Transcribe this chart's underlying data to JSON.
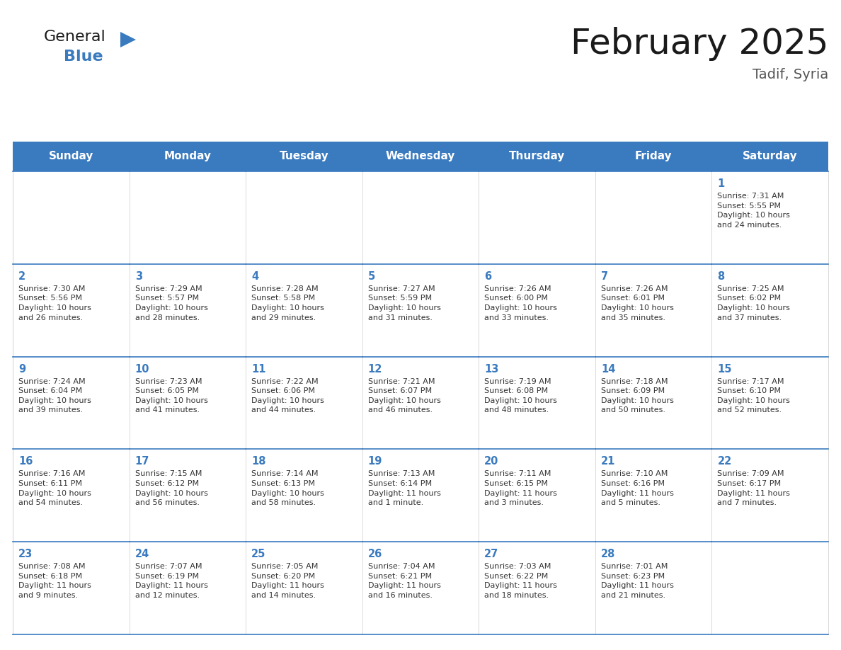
{
  "title": "February 2025",
  "subtitle": "Tadif, Syria",
  "header_bg": "#3a7abf",
  "header_text_color": "#ffffff",
  "border_color": "#3a7abf",
  "day_headers": [
    "Sunday",
    "Monday",
    "Tuesday",
    "Wednesday",
    "Thursday",
    "Friday",
    "Saturday"
  ],
  "title_color": "#1a1a1a",
  "subtitle_color": "#555555",
  "day_num_color": "#3a7abf",
  "cell_text_color": "#333333",
  "general_color": "#1a1a1a",
  "blue_color": "#3a7abf",
  "calendar": [
    [
      null,
      null,
      null,
      null,
      null,
      null,
      {
        "day": 1,
        "sunrise": "7:31 AM",
        "sunset": "5:55 PM",
        "daylight": "10 hours\nand 24 minutes."
      }
    ],
    [
      {
        "day": 2,
        "sunrise": "7:30 AM",
        "sunset": "5:56 PM",
        "daylight": "10 hours\nand 26 minutes."
      },
      {
        "day": 3,
        "sunrise": "7:29 AM",
        "sunset": "5:57 PM",
        "daylight": "10 hours\nand 28 minutes."
      },
      {
        "day": 4,
        "sunrise": "7:28 AM",
        "sunset": "5:58 PM",
        "daylight": "10 hours\nand 29 minutes."
      },
      {
        "day": 5,
        "sunrise": "7:27 AM",
        "sunset": "5:59 PM",
        "daylight": "10 hours\nand 31 minutes."
      },
      {
        "day": 6,
        "sunrise": "7:26 AM",
        "sunset": "6:00 PM",
        "daylight": "10 hours\nand 33 minutes."
      },
      {
        "day": 7,
        "sunrise": "7:26 AM",
        "sunset": "6:01 PM",
        "daylight": "10 hours\nand 35 minutes."
      },
      {
        "day": 8,
        "sunrise": "7:25 AM",
        "sunset": "6:02 PM",
        "daylight": "10 hours\nand 37 minutes."
      }
    ],
    [
      {
        "day": 9,
        "sunrise": "7:24 AM",
        "sunset": "6:04 PM",
        "daylight": "10 hours\nand 39 minutes."
      },
      {
        "day": 10,
        "sunrise": "7:23 AM",
        "sunset": "6:05 PM",
        "daylight": "10 hours\nand 41 minutes."
      },
      {
        "day": 11,
        "sunrise": "7:22 AM",
        "sunset": "6:06 PM",
        "daylight": "10 hours\nand 44 minutes."
      },
      {
        "day": 12,
        "sunrise": "7:21 AM",
        "sunset": "6:07 PM",
        "daylight": "10 hours\nand 46 minutes."
      },
      {
        "day": 13,
        "sunrise": "7:19 AM",
        "sunset": "6:08 PM",
        "daylight": "10 hours\nand 48 minutes."
      },
      {
        "day": 14,
        "sunrise": "7:18 AM",
        "sunset": "6:09 PM",
        "daylight": "10 hours\nand 50 minutes."
      },
      {
        "day": 15,
        "sunrise": "7:17 AM",
        "sunset": "6:10 PM",
        "daylight": "10 hours\nand 52 minutes."
      }
    ],
    [
      {
        "day": 16,
        "sunrise": "7:16 AM",
        "sunset": "6:11 PM",
        "daylight": "10 hours\nand 54 minutes."
      },
      {
        "day": 17,
        "sunrise": "7:15 AM",
        "sunset": "6:12 PM",
        "daylight": "10 hours\nand 56 minutes."
      },
      {
        "day": 18,
        "sunrise": "7:14 AM",
        "sunset": "6:13 PM",
        "daylight": "10 hours\nand 58 minutes."
      },
      {
        "day": 19,
        "sunrise": "7:13 AM",
        "sunset": "6:14 PM",
        "daylight": "11 hours\nand 1 minute."
      },
      {
        "day": 20,
        "sunrise": "7:11 AM",
        "sunset": "6:15 PM",
        "daylight": "11 hours\nand 3 minutes."
      },
      {
        "day": 21,
        "sunrise": "7:10 AM",
        "sunset": "6:16 PM",
        "daylight": "11 hours\nand 5 minutes."
      },
      {
        "day": 22,
        "sunrise": "7:09 AM",
        "sunset": "6:17 PM",
        "daylight": "11 hours\nand 7 minutes."
      }
    ],
    [
      {
        "day": 23,
        "sunrise": "7:08 AM",
        "sunset": "6:18 PM",
        "daylight": "11 hours\nand 9 minutes."
      },
      {
        "day": 24,
        "sunrise": "7:07 AM",
        "sunset": "6:19 PM",
        "daylight": "11 hours\nand 12 minutes."
      },
      {
        "day": 25,
        "sunrise": "7:05 AM",
        "sunset": "6:20 PM",
        "daylight": "11 hours\nand 14 minutes."
      },
      {
        "day": 26,
        "sunrise": "7:04 AM",
        "sunset": "6:21 PM",
        "daylight": "11 hours\nand 16 minutes."
      },
      {
        "day": 27,
        "sunrise": "7:03 AM",
        "sunset": "6:22 PM",
        "daylight": "11 hours\nand 18 minutes."
      },
      {
        "day": 28,
        "sunrise": "7:01 AM",
        "sunset": "6:23 PM",
        "daylight": "11 hours\nand 21 minutes."
      },
      null
    ]
  ]
}
